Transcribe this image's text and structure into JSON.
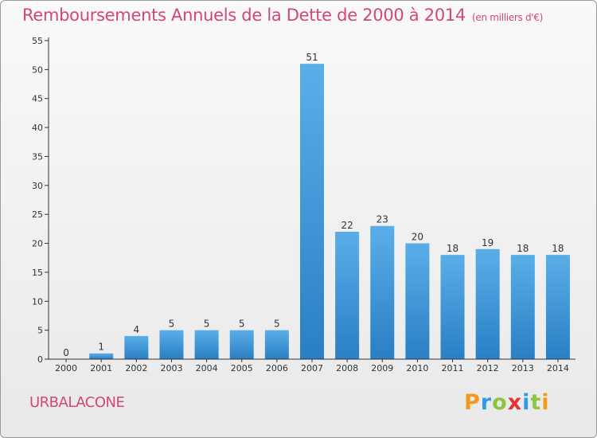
{
  "header": {
    "title": "Remboursements Annuels de la Dette de 2000 à 2014",
    "unit": "(en milliers d'€)"
  },
  "footer": {
    "place": "URBALACONE",
    "brand_letters": [
      "P",
      "r",
      "o",
      "x",
      "i",
      "t",
      "i"
    ],
    "brand_colors": [
      "#f39a1e",
      "#2f9be0",
      "#8cc63e",
      "#e7332f",
      "#2f9be0",
      "#8cc63e",
      "#f39a1e"
    ]
  },
  "chart_data": {
    "type": "bar",
    "categories": [
      "2000",
      "2001",
      "2002",
      "2003",
      "2004",
      "2005",
      "2006",
      "2007",
      "2008",
      "2009",
      "2010",
      "2011",
      "2012",
      "2013",
      "2014"
    ],
    "values": [
      0,
      1,
      4,
      5,
      5,
      5,
      5,
      51,
      22,
      23,
      20,
      18,
      19,
      18,
      18
    ],
    "data_labels": [
      "0",
      "1",
      "4",
      "5",
      "5",
      "5",
      "5",
      "51",
      "22",
      "23",
      "20",
      "18",
      "19",
      "18",
      "18"
    ],
    "ylim": [
      0,
      55
    ],
    "yticks": [
      0,
      5,
      10,
      15,
      20,
      25,
      30,
      35,
      40,
      45,
      50,
      55
    ],
    "grid": false,
    "colors": {
      "bar_top": "#5aaee8",
      "bar_bottom": "#2a7fc4",
      "axis": "#333333",
      "text": "#333333",
      "accent": "#d2467a"
    }
  }
}
